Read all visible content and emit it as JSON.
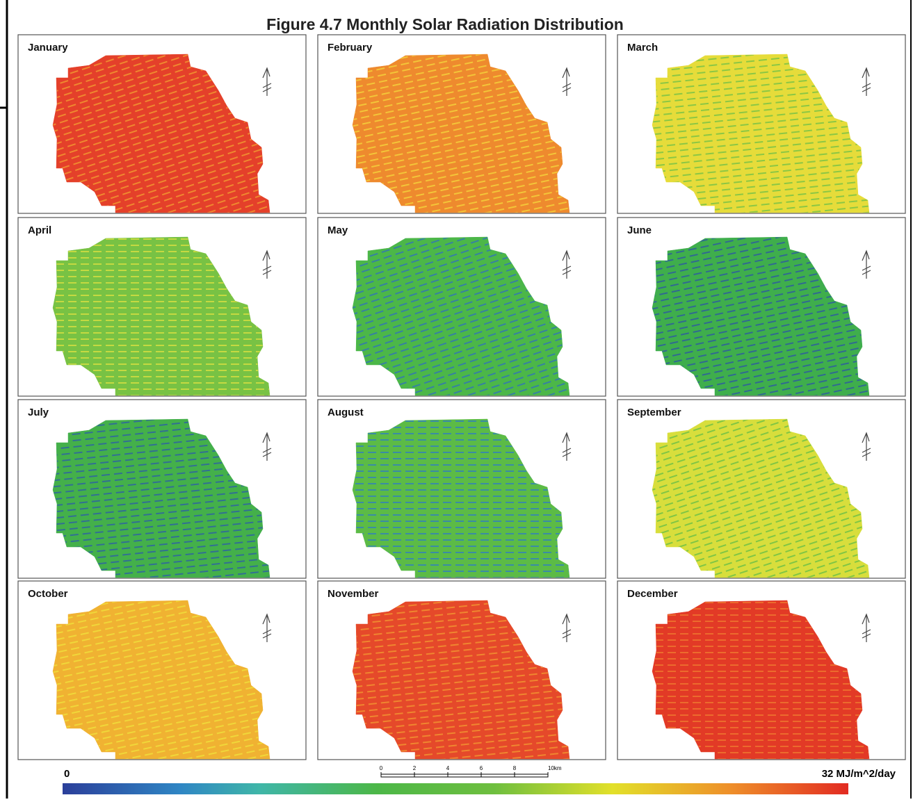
{
  "title": "Figure 4.7  Monthly Solar Radiation Distribution",
  "panels": [
    {
      "label": "January"
    },
    {
      "label": "February"
    },
    {
      "label": "March"
    },
    {
      "label": "April"
    },
    {
      "label": "May"
    },
    {
      "label": "June"
    },
    {
      "label": "July"
    },
    {
      "label": "August"
    },
    {
      "label": "September"
    },
    {
      "label": "October"
    },
    {
      "label": "November"
    },
    {
      "label": "December"
    }
  ],
  "legend": {
    "min_label": "0",
    "max_label": "32 MJ/m^2/day"
  },
  "scale_bar": {
    "labels": [
      "0",
      "2",
      "4",
      "6",
      "8",
      "10km"
    ]
  }
}
